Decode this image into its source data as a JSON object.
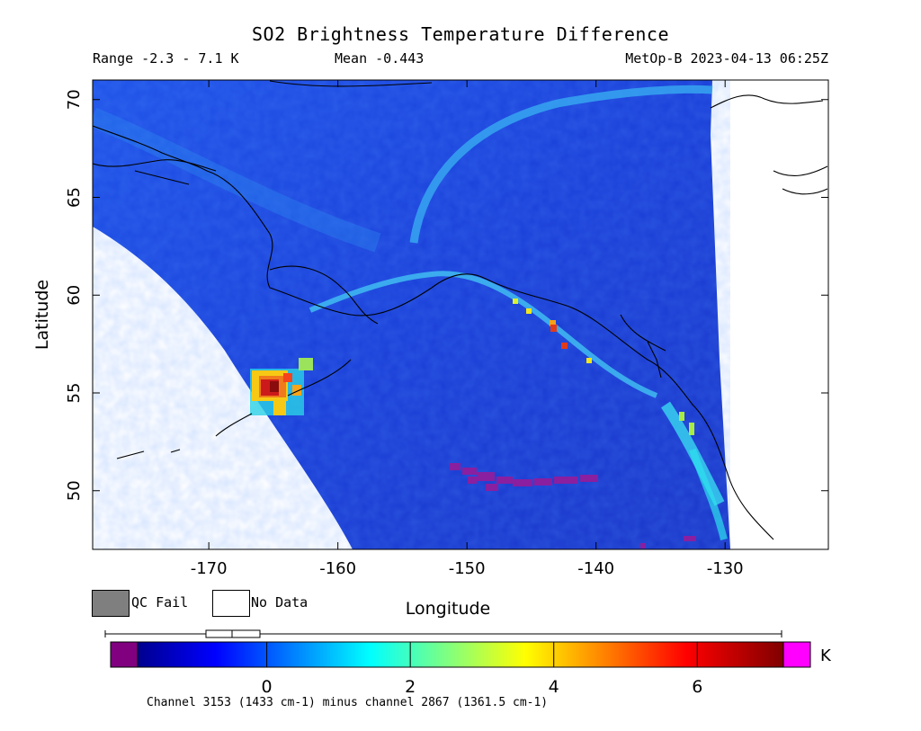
{
  "title": "SO2 Brightness Temperature Difference",
  "range_text": "Range -2.3 - 7.1 K",
  "mean_text": "Mean -0.443",
  "satellite_text": "MetOp-B 2023-04-13 06:25Z",
  "x_axis_label": "Longitude",
  "y_axis_label": "Latitude",
  "x_ticks": [
    "-170",
    "-160",
    "-150",
    "-140",
    "-130"
  ],
  "y_ticks": [
    "50",
    "55",
    "60",
    "65",
    "70"
  ],
  "map_extent": {
    "lon": [
      -179,
      -122
    ],
    "lat": [
      47,
      71
    ]
  },
  "colors": {
    "qc_fail": "#7f7f7f",
    "no_data": "#ffffff",
    "background_field": "#1f46e6",
    "over_range": "#ff00ff",
    "under_range": "#800080"
  },
  "legend": {
    "qc_fail": "QC Fail",
    "no_data": "No Data"
  },
  "colorbar": {
    "ticks": [
      "0",
      "2",
      "4",
      "6"
    ],
    "tick_values": [
      0,
      2,
      4,
      6
    ],
    "min": -1.8,
    "max": 7.2,
    "unit": "K",
    "data_min": -2.3,
    "data_max": 7.1,
    "mean": -0.443
  },
  "channel_text": "Channel 3153 (1433 cm-1) minus channel 2867 (1361.5 cm-1)"
}
